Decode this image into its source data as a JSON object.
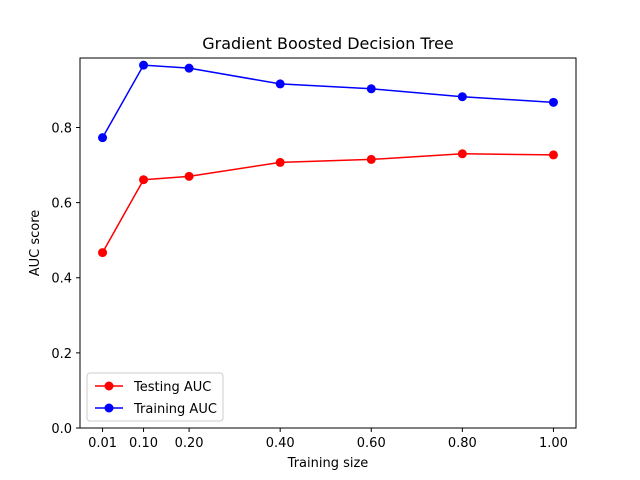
{
  "chart_data": {
    "type": "line",
    "title": "Gradient Boosted Decision Tree",
    "xlabel": "Training size",
    "ylabel": "AUC score",
    "x": [
      0.01,
      0.1,
      0.2,
      0.4,
      0.6,
      0.8,
      1.0
    ],
    "xticks": [
      "0.01",
      "0.10",
      "0.20",
      "0.40",
      "0.60",
      "0.80",
      "1.00"
    ],
    "yticks": [
      "0.0",
      "0.2",
      "0.4",
      "0.6",
      "0.8"
    ],
    "xlim": [
      -0.0395,
      1.0495
    ],
    "ylim": [
      0.0,
      0.985
    ],
    "legend_position": "lower-left",
    "grid": false,
    "series": [
      {
        "name": "Testing AUC",
        "color": "#ff0000",
        "values": [
          0.467,
          0.661,
          0.67,
          0.707,
          0.715,
          0.73,
          0.727
        ]
      },
      {
        "name": "Training AUC",
        "color": "#0000ff",
        "values": [
          0.773,
          0.966,
          0.958,
          0.916,
          0.903,
          0.882,
          0.867
        ]
      }
    ]
  }
}
